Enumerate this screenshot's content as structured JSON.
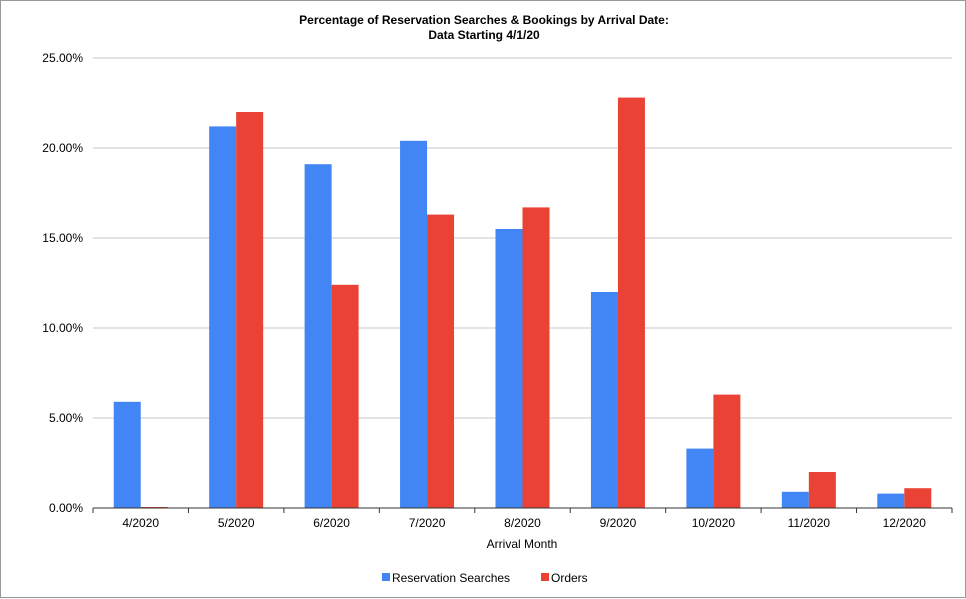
{
  "chart_data": {
    "type": "bar",
    "title_line1": "Percentage of Reservation  Searches & Bookings  by Arrival Date:",
    "title_line2": "Data Starting 4/1/20",
    "xlabel": "Arrival Month",
    "ylabel": "",
    "ylim": [
      0,
      25
    ],
    "yticks": [
      0,
      5,
      10,
      15,
      20,
      25
    ],
    "ytick_labels": [
      "0.00%",
      "5.00%",
      "10.00%",
      "15.00%",
      "20.00%",
      "25.00%"
    ],
    "grid": true,
    "legend_position": "bottom",
    "categories": [
      "4/2020",
      "5/2020",
      "6/2020",
      "7/2020",
      "8/2020",
      "9/2020",
      "10/2020",
      "11/2020",
      "12/2020"
    ],
    "series": [
      {
        "name": "Reservation Searches",
        "color": "#4285f4",
        "values": [
          5.9,
          21.2,
          19.1,
          20.4,
          15.5,
          12.0,
          3.3,
          0.9,
          0.8
        ]
      },
      {
        "name": "Orders",
        "color": "#ea4335",
        "values": [
          0.05,
          22.0,
          12.4,
          16.3,
          16.7,
          22.8,
          6.3,
          2.0,
          1.1
        ]
      }
    ]
  }
}
